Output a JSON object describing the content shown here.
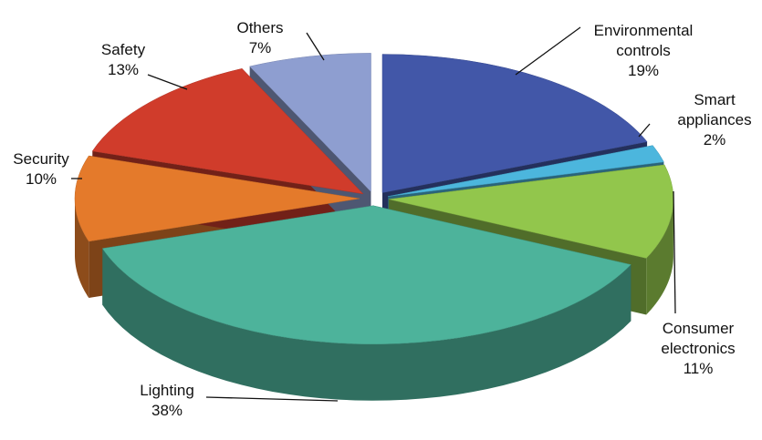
{
  "chart_data": {
    "type": "pie",
    "categories": [
      "Environmental controls",
      "Smart appliances",
      "Consumer electronics",
      "Lighting",
      "Security",
      "Safety",
      "Others"
    ],
    "values": [
      19,
      2,
      11,
      38,
      10,
      13,
      7
    ],
    "value_labels": [
      "19%",
      "2%",
      "11%",
      "38%",
      "10%",
      "13%",
      "7%"
    ],
    "colors": [
      "#4257a8",
      "#4cb6dd",
      "#92c64c",
      "#4db39b",
      "#e47a2b",
      "#d03c2b",
      "#8e9ed0"
    ]
  }
}
